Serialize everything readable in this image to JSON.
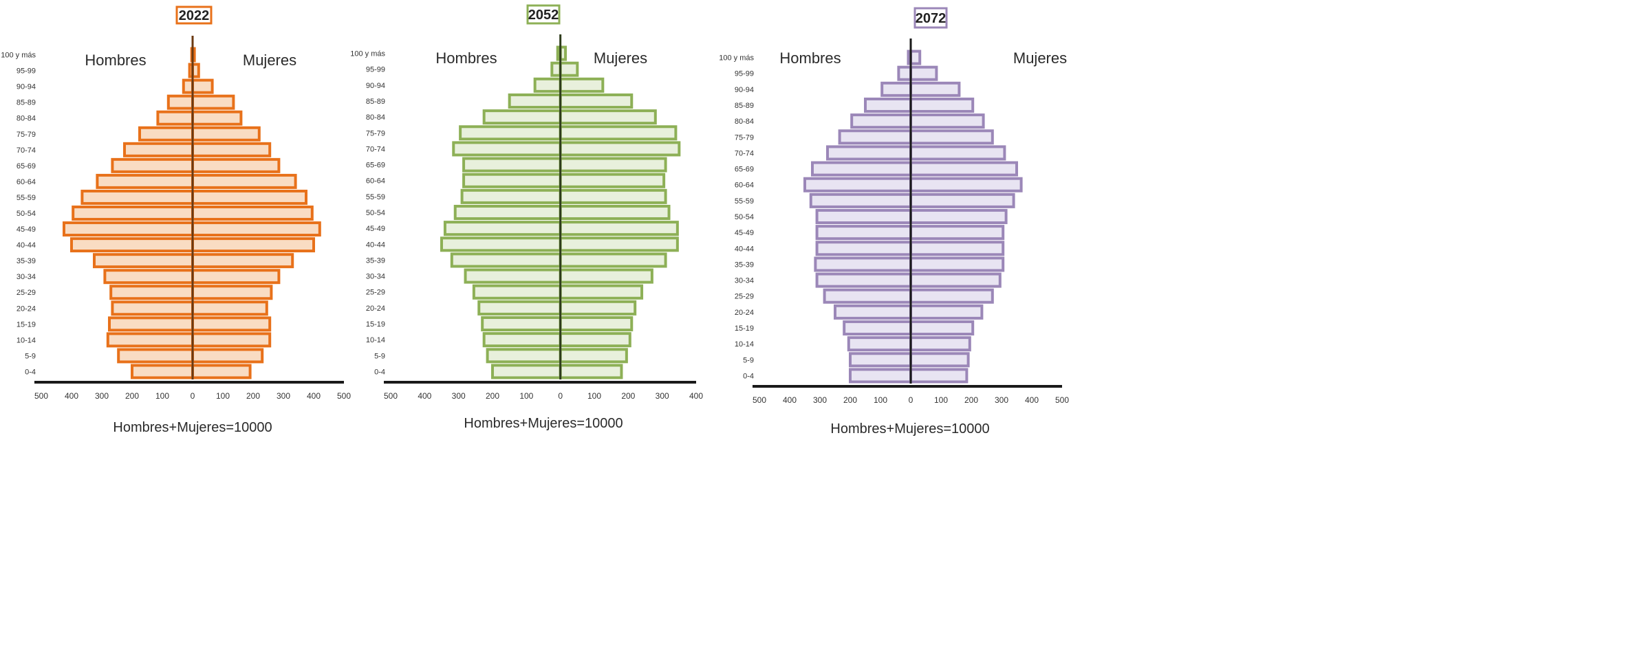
{
  "chart_data": [
    {
      "type": "bar",
      "title": "2022",
      "accent": "#e8711a",
      "fill": "#f9dcc3",
      "axis_color": "#6b3a12",
      "left_label": "Hombres",
      "right_label": "Mujeres",
      "xlabel": "Hombres+Mujeres=10000",
      "xlim": [
        -500,
        500
      ],
      "xticks": [
        "500",
        "400",
        "300",
        "200",
        "100",
        "0",
        "100",
        "200",
        "300",
        "400",
        "500"
      ],
      "categories": [
        "0-4",
        "5-9",
        "10-14",
        "15-19",
        "20-24",
        "25-29",
        "30-34",
        "35-39",
        "40-44",
        "45-49",
        "50-54",
        "55-59",
        "60-64",
        "65-69",
        "70-74",
        "75-79",
        "80-84",
        "85-89",
        "90-94",
        "95-99",
        "100 y más"
      ],
      "series": [
        {
          "name": "Hombres",
          "values": [
            200,
            245,
            280,
            275,
            265,
            270,
            290,
            325,
            400,
            425,
            395,
            365,
            315,
            265,
            225,
            175,
            115,
            80,
            30,
            10,
            3
          ]
        },
        {
          "name": "Mujeres",
          "values": [
            190,
            230,
            255,
            255,
            245,
            260,
            285,
            330,
            400,
            420,
            395,
            375,
            340,
            285,
            255,
            220,
            160,
            135,
            65,
            20,
            6
          ]
        }
      ]
    },
    {
      "type": "bar",
      "title": "2052",
      "accent": "#8db056",
      "fill": "#e8f0dc",
      "axis_color": "#2f3d1c",
      "left_label": "Hombres",
      "right_label": "Mujeres",
      "xlabel": "Hombres+Mujeres=10000",
      "xlim": [
        -500,
        400
      ],
      "xticks": [
        "500",
        "400",
        "300",
        "200",
        "100",
        "0",
        "100",
        "200",
        "300",
        "400"
      ],
      "categories": [
        "0-4",
        "5-9",
        "10-14",
        "15-19",
        "20-24",
        "25-29",
        "30-34",
        "35-39",
        "40-44",
        "45-49",
        "50-54",
        "55-59",
        "60-64",
        "65-69",
        "70-74",
        "75-79",
        "80-84",
        "85-89",
        "90-94",
        "95-99",
        "100 y más"
      ],
      "series": [
        {
          "name": "Hombres",
          "values": [
            200,
            215,
            225,
            230,
            240,
            255,
            280,
            320,
            350,
            340,
            310,
            290,
            285,
            285,
            315,
            295,
            225,
            150,
            75,
            25,
            8
          ]
        },
        {
          "name": "Mujeres",
          "values": [
            180,
            195,
            205,
            210,
            220,
            240,
            270,
            310,
            345,
            345,
            320,
            310,
            305,
            310,
            350,
            340,
            280,
            210,
            125,
            50,
            15
          ]
        }
      ]
    },
    {
      "type": "bar",
      "title": "2072",
      "accent": "#9b87b8",
      "fill": "#e8e4f2",
      "axis_color": "#1a1a1a",
      "left_label": "Hombres",
      "right_label": "Mujeres",
      "xlabel": "Hombres+Mujeres=10000",
      "xlim": [
        -500,
        500
      ],
      "xticks": [
        "500",
        "400",
        "300",
        "200",
        "100",
        "0",
        "100",
        "200",
        "300",
        "400",
        "500"
      ],
      "categories": [
        "0-4",
        "5-9",
        "10-14",
        "15-19",
        "20-24",
        "25-29",
        "30-34",
        "35-39",
        "40-44",
        "45-49",
        "50-54",
        "55-59",
        "60-64",
        "65-69",
        "70-74",
        "75-79",
        "80-84",
        "85-89",
        "90-94",
        "95-99",
        "100 y más"
      ],
      "series": [
        {
          "name": "Hombres",
          "values": [
            200,
            200,
            205,
            220,
            250,
            285,
            310,
            315,
            310,
            310,
            310,
            330,
            350,
            325,
            275,
            235,
            195,
            150,
            95,
            40,
            8
          ]
        },
        {
          "name": "Mujeres",
          "values": [
            185,
            190,
            195,
            205,
            235,
            270,
            295,
            305,
            305,
            305,
            315,
            340,
            365,
            350,
            310,
            270,
            240,
            205,
            160,
            85,
            30
          ]
        }
      ]
    }
  ]
}
